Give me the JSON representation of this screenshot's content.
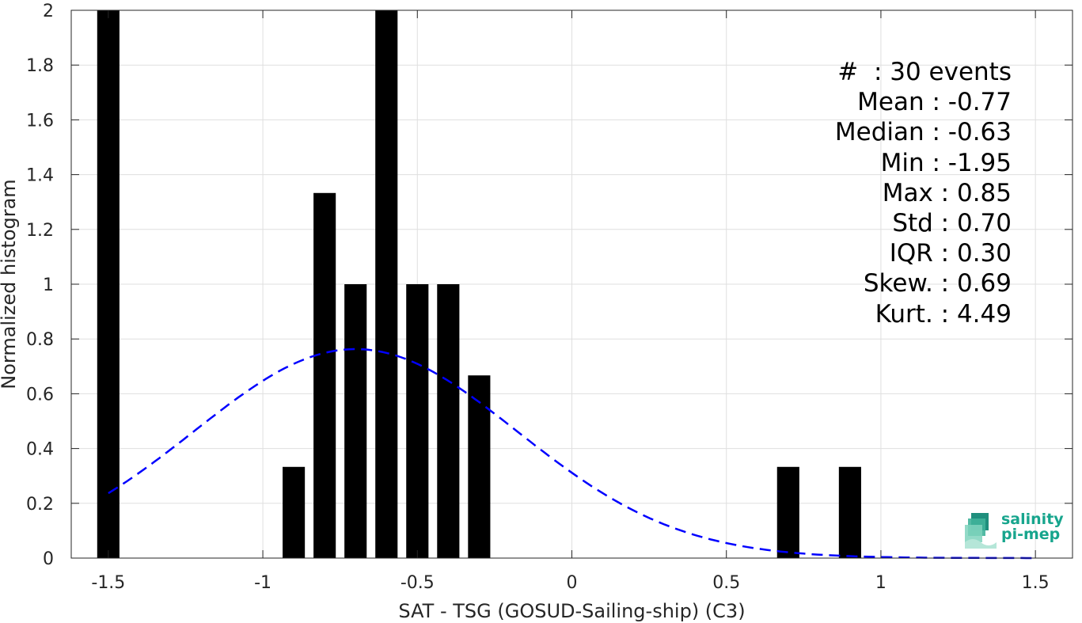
{
  "chart_data": {
    "type": "bar",
    "xlabel": "SAT - TSG (GOSUD-Sailing-ship) (C3)",
    "ylabel": "Normalized histogram",
    "xlim": [
      -1.62,
      1.62
    ],
    "ylim": [
      0,
      2
    ],
    "xticks": [
      -1.5,
      -1,
      -0.5,
      0,
      0.5,
      1,
      1.5
    ],
    "xtick_labels": [
      "-1.5",
      "-1",
      "-0.5",
      "0",
      "0.5",
      "1",
      "1.5"
    ],
    "yticks": [
      0,
      0.2,
      0.4,
      0.6,
      0.8,
      1,
      1.2,
      1.4,
      1.6,
      1.8,
      2
    ],
    "ytick_labels": [
      "0",
      "0.2",
      "0.4",
      "0.6",
      "0.8",
      "1",
      "1.2",
      "1.4",
      "1.6",
      "1.8",
      "2"
    ],
    "grid": true,
    "bin_width": 0.1,
    "bars": [
      {
        "x": -1.5,
        "y": 2
      },
      {
        "x": -0.9,
        "y": 0.333
      },
      {
        "x": -0.8,
        "y": 1.333
      },
      {
        "x": -0.7,
        "y": 1
      },
      {
        "x": -0.6,
        "y": 2
      },
      {
        "x": -0.5,
        "y": 1
      },
      {
        "x": -0.4,
        "y": 1
      },
      {
        "x": -0.3,
        "y": 0.667
      },
      {
        "x": 0.7,
        "y": 0.333
      },
      {
        "x": 0.9,
        "y": 0.333
      }
    ],
    "fit_curve": {
      "type": "gaussian",
      "mean": -0.7,
      "std": 0.523,
      "peak": 0.763,
      "x_range": [
        -1.5,
        1.5
      ],
      "color": "#0000ff",
      "style": "dashed"
    },
    "bar_color": "#000000",
    "stats": [
      "#  : 30 events",
      "Mean : -0.77",
      "Median : -0.63",
      "Min : -1.95",
      "Max : 0.85",
      "Std : 0.70",
      "IQR : 0.30",
      "Skew. : 0.69",
      "Kurt. : 4.49"
    ]
  },
  "logo": {
    "line1": "salinity",
    "line2": "pi-mep",
    "color": "#17a58d"
  }
}
